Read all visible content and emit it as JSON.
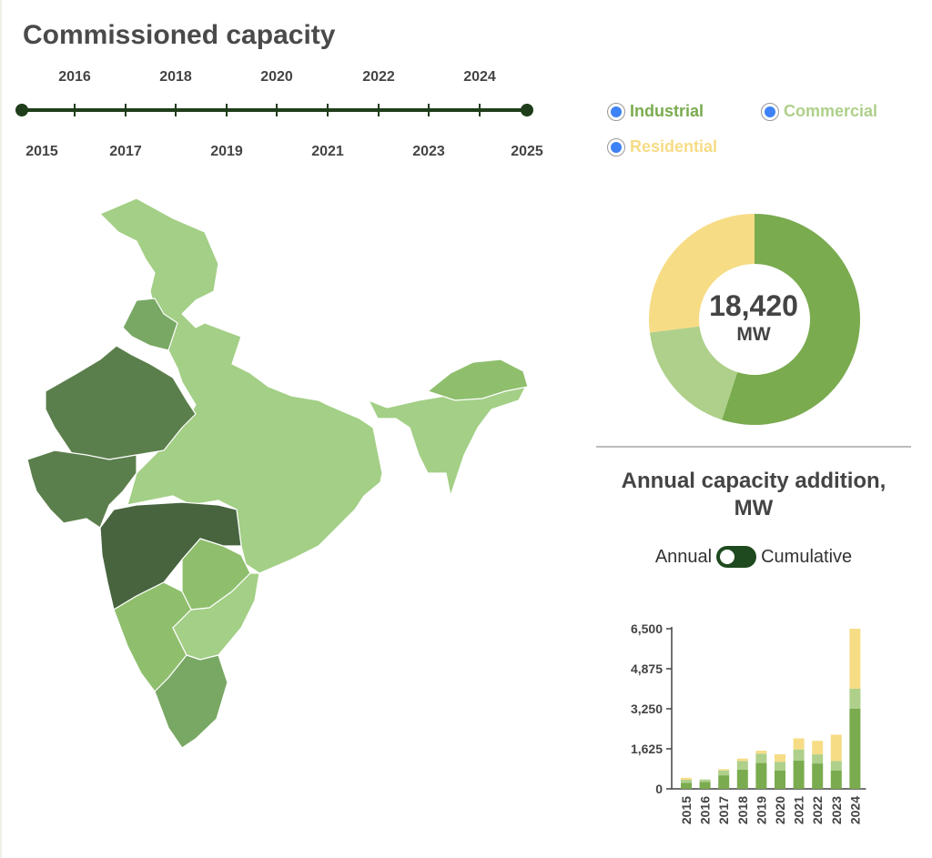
{
  "title": "Commissioned capacity",
  "timeline": {
    "years_top": [
      "2016",
      "2018",
      "2020",
      "2022",
      "2024"
    ],
    "years_bottom": [
      "2015",
      "2017",
      "2019",
      "2021",
      "2023",
      "2025"
    ],
    "range": [
      2015,
      2025
    ],
    "line_color": "#1f3d1a"
  },
  "legend": [
    {
      "label": "Industrial",
      "color": "#7aab4f",
      "selected": true
    },
    {
      "label": "Commercial",
      "color": "#aed08a",
      "selected": true
    },
    {
      "label": "Residential",
      "color": "#f7dc86",
      "selected": true
    }
  ],
  "map": {
    "palette": [
      "#a3cf86",
      "#8fbf6d",
      "#79a864",
      "#5b7f4c",
      "#47643f"
    ]
  },
  "donut": {
    "value": "18,420",
    "unit": "MW"
  },
  "bar_panel": {
    "title": "Annual capacity addition, MW",
    "toggle_left": "Annual",
    "toggle_right": "Cumulative",
    "toggle_state": "Cumulative"
  },
  "chart_data": [
    {
      "type": "pie",
      "categories": [
        "Industrial",
        "Commercial",
        "Residential"
      ],
      "values": [
        55,
        18,
        27
      ],
      "colors": [
        "#7aab4f",
        "#aed08a",
        "#f7dc86"
      ]
    },
    {
      "type": "bar",
      "stacked": true,
      "categories": [
        "2015",
        "2016",
        "2017",
        "2018",
        "2019",
        "2020",
        "2021",
        "2022",
        "2023",
        "2024"
      ],
      "series": [
        {
          "name": "Industrial",
          "color": "#7aab4f",
          "values": [
            250,
            280,
            550,
            780,
            1050,
            750,
            1150,
            1030,
            750,
            3250
          ]
        },
        {
          "name": "Commercial",
          "color": "#aed08a",
          "values": [
            120,
            100,
            200,
            350,
            380,
            350,
            450,
            370,
            380,
            820
          ]
        },
        {
          "name": "Residential",
          "color": "#f7dc86",
          "values": [
            80,
            0,
            50,
            100,
            120,
            300,
            450,
            550,
            1070,
            2430
          ]
        }
      ],
      "ylim": [
        0,
        6500
      ],
      "yticks": [
        "0",
        "1,625",
        "3,250",
        "4,875",
        "6,500"
      ],
      "ytick_values": [
        0,
        1625,
        3250,
        4875,
        6500
      ],
      "grid": false
    }
  ]
}
